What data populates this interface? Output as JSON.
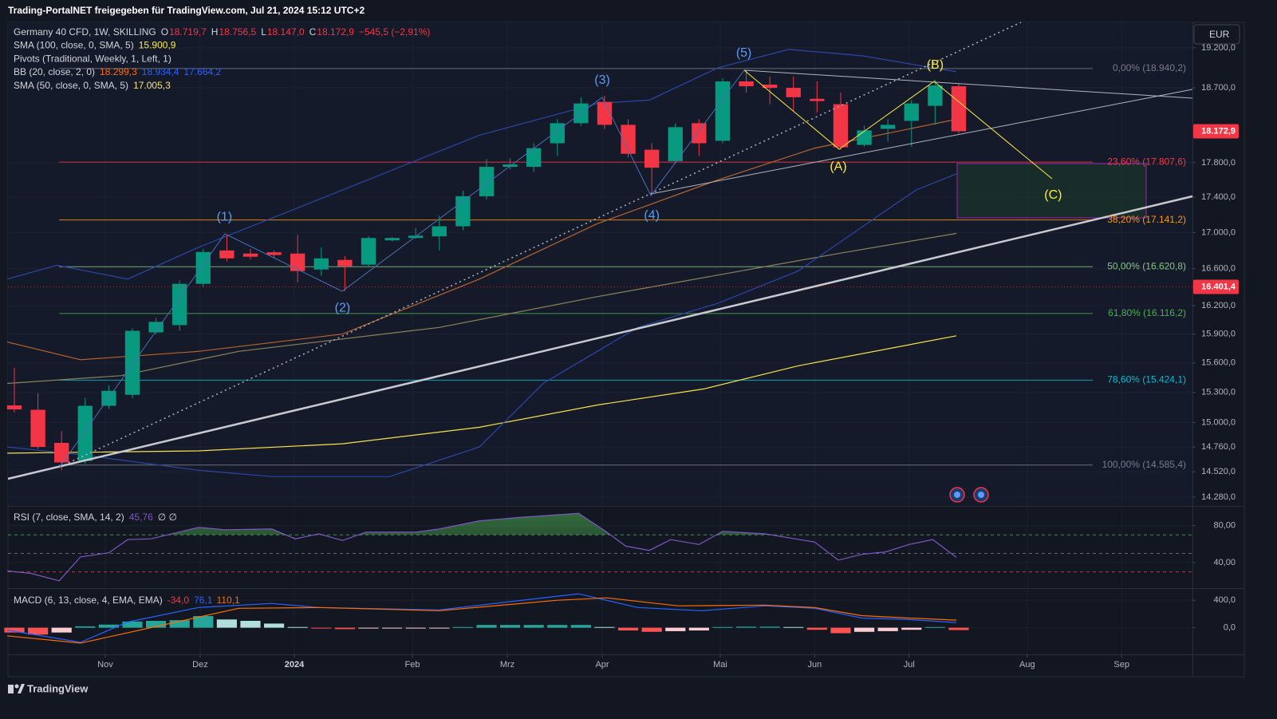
{
  "header": "Trading-PortalNET freigegeben für TradingView.com, Jul 21, 2024 15:12 UTC+2",
  "footer": "TradingView",
  "currency": "EUR",
  "chart_data": [
    {
      "type": "candlestick",
      "log_scale": true,
      "grid": true,
      "legend": [
        [
          {
            "text": "Germany 40 CFD, 1W, SKILLING",
            "color": "#d1d4dc"
          },
          {
            "text": "O",
            "color": "#d1d4dc"
          },
          {
            "text": "18.719,7",
            "color": "#f23645"
          },
          {
            "text": "H",
            "color": "#d1d4dc"
          },
          {
            "text": "18.756,5",
            "color": "#f23645"
          },
          {
            "text": "L",
            "color": "#d1d4dc"
          },
          {
            "text": "18.147,0",
            "color": "#f23645"
          },
          {
            "text": "C",
            "color": "#d1d4dc"
          },
          {
            "text": "18.172,9",
            "color": "#f23645"
          },
          {
            "text": "−545,5 (−2,91%)",
            "color": "#f23645"
          }
        ],
        [
          {
            "text": "SMA (100, close, 0, SMA, 5)",
            "color": "#d1d4dc"
          },
          {
            "text": "15.900,9",
            "color": "#ffeb3b"
          }
        ],
        [
          {
            "text": "Pivots (Traditional, Weekly, 1, Left, 1)",
            "color": "#d1d4dc"
          }
        ],
        [
          {
            "text": "BB (20, close, 2, 0)",
            "color": "#d1d4dc"
          },
          {
            "text": "18.299,3",
            "color": "#ff6d00"
          },
          {
            "text": "18.934,4",
            "color": "#2962ff"
          },
          {
            "text": "17.664,2",
            "color": "#2962ff"
          }
        ],
        [
          {
            "text": "SMA (50, close, 0, SMA, 5)",
            "color": "#d1d4dc"
          },
          {
            "text": "17.005,3",
            "color": "#f5e47a"
          }
        ]
      ],
      "xlim": [
        -0.27,
        49.9
      ],
      "xticks": [
        {
          "value": 3.85,
          "label": "Nov"
        },
        {
          "value": 7.87,
          "label": "Dez"
        },
        {
          "value": 11.86,
          "label": "2024"
        },
        {
          "value": 16.86,
          "label": "Feb"
        },
        {
          "value": 20.88,
          "label": "Mrz"
        },
        {
          "value": 24.9,
          "label": "Apr"
        },
        {
          "value": 29.9,
          "label": "Mai"
        },
        {
          "value": 33.9,
          "label": "Jun"
        },
        {
          "value": 37.9,
          "label": "Jul"
        },
        {
          "value": 42.9,
          "label": "Aug"
        },
        {
          "value": 46.9,
          "label": "Sep"
        }
      ],
      "ylim": [
        14205,
        19525
      ],
      "yticks": [
        {
          "value": 19200,
          "label": "19.200,0"
        },
        {
          "value": 18700,
          "label": "18.700,0"
        },
        {
          "value": 17800,
          "label": "17.800,0"
        },
        {
          "value": 17400,
          "label": "17.400,0"
        },
        {
          "value": 17000,
          "label": "17.000,0"
        },
        {
          "value": 16600,
          "label": "16.600,0"
        },
        {
          "value": 16200,
          "label": "16.200,0"
        },
        {
          "value": 15900,
          "label": "15.900,0"
        },
        {
          "value": 15600,
          "label": "15.600,0"
        },
        {
          "value": 15300,
          "label": "15.300,0"
        },
        {
          "value": 15000,
          "label": "15.000,0"
        },
        {
          "value": 14760,
          "label": "14.760,0"
        },
        {
          "value": 14520,
          "label": "14.520,0"
        },
        {
          "value": 14280,
          "label": "14.280,0"
        }
      ],
      "up_color": "#089981",
      "down_color": "#f23645",
      "open": [
        15170,
        15126,
        14800,
        14625,
        15166,
        15276,
        15917,
        15994,
        16435,
        16800,
        16766,
        16780,
        16766,
        16591,
        16696,
        16644,
        16913,
        16939,
        16957,
        17070,
        17411,
        17752,
        17752,
        18030,
        18270,
        18528,
        18250,
        17953,
        17819,
        18270,
        18059,
        18780,
        18740,
        18700,
        18566,
        18500,
        18010,
        18202,
        18298,
        18480,
        18719.7
      ],
      "high": [
        15551,
        15292,
        14915,
        15245,
        15373,
        15960,
        16070,
        16470,
        16818,
        16974,
        16818,
        16800,
        16974,
        16835,
        16740,
        16960,
        16950,
        17052,
        17190,
        17475,
        17842,
        17850,
        18030,
        18317,
        18586,
        18604,
        18317,
        18030,
        18270,
        18317,
        18820,
        18920,
        18840,
        18840,
        18780,
        18643,
        18240,
        18317,
        18550,
        18800,
        18756.5
      ],
      "low": [
        15100,
        14740,
        14535,
        14595,
        15134,
        15240,
        15900,
        15934,
        16400,
        16680,
        16700,
        16720,
        16452,
        16522,
        16357,
        16620,
        16900,
        16930,
        16800,
        17026,
        17375,
        17720,
        17695,
        17880,
        18240,
        18200,
        17860,
        17420,
        17790,
        17880,
        18030,
        18643,
        18500,
        18413,
        18400,
        17953,
        17990,
        18050,
        17990,
        18250,
        18147.0
      ],
      "close": [
        15130,
        14760,
        14610,
        15166,
        15316,
        15934,
        16028,
        16435,
        16783,
        16713,
        16731,
        16750,
        16574,
        16713,
        16626,
        16939,
        16939,
        16965,
        17070,
        17411,
        17752,
        17780,
        17972,
        18270,
        18509,
        18250,
        17905,
        17742,
        18222,
        18030,
        18780,
        18720,
        18700,
        18585,
        18538,
        17982,
        18183,
        18250,
        18509,
        18730,
        18172.9
      ],
      "overlays": [
        {
          "color": "#f7e34a",
          "x": [
            -0.3,
            7.8,
            13.9,
            19.7,
            24.7,
            29.2,
            33.2,
            39.9
          ],
          "values": [
            14700,
            14722,
            14791,
            14953,
            15174,
            15335,
            15571,
            15882
          ]
        },
        {
          "color": "#8a8458",
          "x": [
            -0.3,
            4.5,
            9.5,
            18,
            24.7,
            29.8,
            34.9,
            39.9
          ],
          "values": [
            15391,
            15470,
            15720,
            15970,
            16297,
            16530,
            16766,
            16990
          ]
        },
        {
          "color": "#b8642c",
          "x": [
            -0.3,
            2.8,
            7.8,
            13.9,
            19.7,
            24.7,
            29.8,
            33.9,
            39.9
          ],
          "values": [
            15817,
            15633,
            15720,
            15900,
            16487,
            17100,
            17600,
            17972,
            18317
          ]
        },
        {
          "color": "#2a47a8",
          "x": [
            -0.3,
            1.8,
            4.8,
            7.8,
            12.9,
            19.7,
            24.7,
            26.9,
            29.8,
            32.8,
            35.9,
            39.9
          ],
          "values": [
            16487,
            16637,
            16487,
            16835,
            17375,
            18126,
            18509,
            18550,
            18950,
            19180,
            19100,
            18900
          ]
        },
        {
          "color": "#2a47a8",
          "x": [
            -0.3,
            2.8,
            7.8,
            10.9,
            15.9,
            19.7,
            22.4,
            26.4,
            29.8,
            33.2,
            36.6,
            38.2,
            39.9
          ],
          "values": [
            14760,
            14685,
            14535,
            14475,
            14475,
            14760,
            15391,
            15970,
            16226,
            16574,
            17190,
            17484,
            17670
          ]
        }
      ],
      "fib_levels": [
        {
          "value": 18940.2,
          "label": "0,00% (18.940,2)",
          "color": "#787b86"
        },
        {
          "value": 17807.6,
          "label": "23,60% (17.807,6)",
          "color": "#f23645"
        },
        {
          "value": 17141.2,
          "label": "38,20% (17.141,2)",
          "color": "#ff9800"
        },
        {
          "value": 16620.8,
          "label": "50,00% (16.620,8)",
          "color": "#81c784"
        },
        {
          "value": 16116.2,
          "label": "61,80% (16.116,2)",
          "color": "#4caf50"
        },
        {
          "value": 15424.1,
          "label": "78,60% (15.424,1)",
          "color": "#00bcd4"
        },
        {
          "value": 14585.4,
          "label": "100,00% (14.585,4)",
          "color": "#787b86"
        }
      ],
      "price_labels": [
        {
          "value": 18172.9,
          "label": "18.172,9",
          "color": "#f23645",
          "line": false
        },
        {
          "value": 16401.4,
          "label": "16.401,4",
          "color": "#f23645",
          "line": true
        }
      ],
      "annotations": [
        {
          "text": "(1)",
          "x": 8.9,
          "y": 17170,
          "color": "#5b9cf6"
        },
        {
          "text": "(2)",
          "x": 13.9,
          "y": 16174,
          "color": "#5b9cf6"
        },
        {
          "text": "(3)",
          "x": 24.9,
          "y": 18790,
          "color": "#5b9cf6"
        },
        {
          "text": "(4)",
          "x": 27,
          "y": 17190,
          "color": "#5b9cf6"
        },
        {
          "text": "(5)",
          "x": 30.9,
          "y": 19130,
          "color": "#5b9cf6"
        },
        {
          "text": "(A)",
          "x": 34.9,
          "y": 17752,
          "color": "#ffeb3b"
        },
        {
          "text": "(B)",
          "x": 39,
          "y": 18980,
          "color": "#ffeb3b"
        },
        {
          "text": "(C)",
          "x": 44,
          "y": 17420,
          "color": "#ffeb3b"
        }
      ]
    },
    {
      "type": "line",
      "grid": true,
      "legend": [
        [
          {
            "text": "RSI (7, close, SMA, 14, 2)",
            "color": "#d1d4dc"
          },
          {
            "text": "45,76",
            "color": "#7e57c2"
          },
          {
            "text": "∅ ∅",
            "color": "#d1d4dc"
          }
        ]
      ],
      "ylim": [
        13.3,
        99.6
      ],
      "yticks": [
        {
          "value": 80,
          "label": "80,00"
        },
        {
          "value": 40,
          "label": "40,00"
        }
      ],
      "levels": [
        {
          "value": 70,
          "color": "#4caf50"
        },
        {
          "value": 50,
          "color": "#787b86"
        },
        {
          "value": 30,
          "color": "#f23645"
        }
      ],
      "fill_color": "#4caf50",
      "series": [
        {
          "color": "#7e57c2",
          "x": [
            -0.3,
            0.7,
            1.9,
            2.8,
            4.0,
            4.8,
            5.8,
            7.8,
            8.9,
            10.9,
            11.9,
            12.9,
            13.9,
            14.9,
            17.0,
            18.0,
            19.7,
            21.4,
            23.9,
            25.1,
            25.9,
            26.9,
            27.8,
            29.0,
            30.0,
            31.8,
            33.9,
            34.9,
            35.9,
            36.9,
            37.9,
            38.9,
            39.9
          ],
          "values": [
            31.1,
            28.4,
            20.4,
            46.2,
            50.7,
            64.9,
            65.8,
            78.2,
            75.6,
            76.4,
            65.8,
            71.1,
            64,
            72.9,
            72.9,
            76.4,
            85.3,
            88.9,
            93.3,
            72.9,
            57.8,
            53.3,
            64.9,
            59.6,
            73.8,
            71.1,
            62.2,
            42.7,
            48.9,
            51.6,
            59.6,
            64.9,
            45.76
          ]
        }
      ]
    },
    {
      "type": "macd",
      "grid": true,
      "legend": [
        [
          {
            "text": "MACD (6, 13, close, 4, EMA, EMA)",
            "color": "#d1d4dc"
          },
          {
            "text": "-34,0",
            "color": "#f23645"
          },
          {
            "text": "76,1",
            "color": "#2962ff"
          },
          {
            "text": "110,1",
            "color": "#ff6d00"
          }
        ]
      ],
      "ylim": [
        -388,
        553
      ],
      "yticks": [
        {
          "value": 400,
          "label": "400,0"
        },
        {
          "value": 0,
          "label": "0,0"
        }
      ],
      "histogram": {
        "values": [
          -70,
          -100,
          -70,
          20,
          45,
          90,
          100,
          110,
          170,
          120,
          100,
          60,
          10,
          -10,
          -20,
          -10,
          -10,
          -10,
          -10,
          10,
          40,
          40,
          40,
          40,
          40,
          10,
          -40,
          -60,
          -50,
          -40,
          10,
          15,
          15,
          10,
          -30,
          -80,
          -60,
          -50,
          -30,
          10,
          -34.0
        ],
        "colors": {
          "up_rising": "#26a69a",
          "up_falling": "#b2dfdb",
          "down_falling": "#ff5252",
          "down_rising": "#ffcdd2"
        }
      },
      "series": [
        {
          "color": "#2962ff",
          "x": [
            -0.3,
            2.8,
            4.8,
            7.8,
            10.9,
            12.9,
            18.0,
            23.0,
            23.9,
            26.4,
            29.1,
            31.8,
            33.9,
            35.9,
            37.9,
            39.9
          ],
          "values": [
            -35,
            -212,
            82,
            294,
            353,
            294,
            259,
            459,
            494,
            294,
            247,
            318,
            282,
            141,
            118,
            76.1
          ]
        },
        {
          "color": "#ff6d00",
          "x": [
            -0.3,
            2.8,
            6.1,
            9.5,
            12.9,
            18.0,
            23.0,
            25.1,
            28.1,
            31.8,
            33.9,
            35.9,
            37.9,
            39.9
          ],
          "values": [
            -118,
            -224,
            24,
            282,
            294,
            247,
            400,
            435,
            318,
            329,
            294,
            176,
            141,
            110.1
          ]
        }
      ]
    }
  ]
}
